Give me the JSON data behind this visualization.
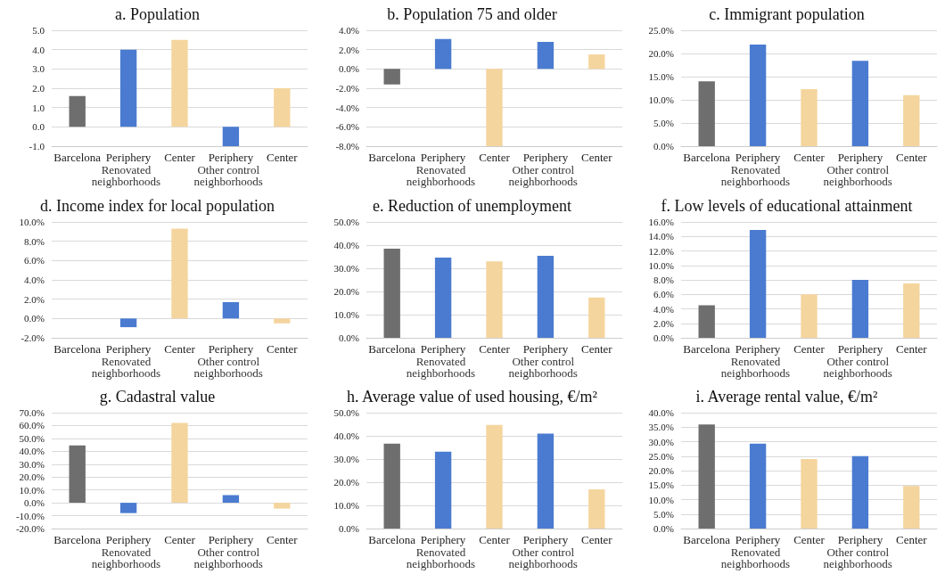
{
  "chart_data": [
    {
      "type": "bar",
      "title": "a. Population",
      "categories": [
        "Barcelona",
        "Periphery",
        "Center",
        "Periphery",
        "Center"
      ],
      "values": [
        1.6,
        4.0,
        4.5,
        -1.0,
        2.0
      ],
      "colors": [
        "#6e6e6e",
        "#4a7bd0",
        "#f5d59e",
        "#4a7bd0",
        "#f5d59e"
      ],
      "ylim": [
        -1,
        5
      ],
      "yticks": [
        {
          "value": -1,
          "label": "-1.0"
        },
        {
          "value": 0,
          "label": "0.0"
        },
        {
          "value": 1,
          "label": "1.0"
        },
        {
          "value": 2,
          "label": "2.0"
        },
        {
          "value": 3,
          "label": "3.0"
        },
        {
          "value": 4,
          "label": "4.0"
        },
        {
          "value": 5,
          "label": "5.0"
        }
      ],
      "grid": "y",
      "annotations": [
        "Renovated neighborhoods",
        "Other control neighborhoods"
      ]
    },
    {
      "type": "bar",
      "title": "b. Population 75 and older",
      "categories": [
        "Barcelona",
        "Periphery",
        "Center",
        "Periphery",
        "Center"
      ],
      "values": [
        -1.6,
        3.1,
        -8.0,
        2.8,
        1.5
      ],
      "colors": [
        "#6e6e6e",
        "#4a7bd0",
        "#f5d59e",
        "#4a7bd0",
        "#f5d59e"
      ],
      "ylim": [
        -8,
        4
      ],
      "yticks": [
        {
          "value": -8,
          "label": "-8.0%"
        },
        {
          "value": -6,
          "label": "-6.0%"
        },
        {
          "value": -4,
          "label": "-4.0%"
        },
        {
          "value": -2,
          "label": "-2.0%"
        },
        {
          "value": 0,
          "label": "0.0%"
        },
        {
          "value": 2,
          "label": "2.0%"
        },
        {
          "value": 4,
          "label": "4.0%"
        }
      ],
      "grid": "y",
      "annotations": [
        "Renovated neighborhoods",
        "Other control neighborhoods"
      ]
    },
    {
      "type": "bar",
      "title": "c. Immigrant population",
      "categories": [
        "Barcelona",
        "Periphery",
        "Center",
        "Periphery",
        "Center"
      ],
      "values": [
        14.0,
        21.9,
        12.3,
        18.4,
        11.0
      ],
      "colors": [
        "#6e6e6e",
        "#4a7bd0",
        "#f5d59e",
        "#4a7bd0",
        "#f5d59e"
      ],
      "ylim": [
        0,
        25
      ],
      "yticks": [
        {
          "value": 0,
          "label": "0.0%"
        },
        {
          "value": 5,
          "label": "5.0%"
        },
        {
          "value": 10,
          "label": "10.0%"
        },
        {
          "value": 15,
          "label": "15.0%"
        },
        {
          "value": 20,
          "label": "20.0%"
        },
        {
          "value": 25,
          "label": "25.0%"
        }
      ],
      "grid": "y",
      "annotations": [
        "Renovated neighborhoods",
        "Other control neighborhoods"
      ]
    },
    {
      "type": "bar",
      "title": "d. Income index for local population",
      "categories": [
        "Barcelona",
        "Periphery",
        "Center",
        "Periphery",
        "Center"
      ],
      "values": [
        0,
        -0.9,
        9.3,
        1.7,
        -0.5
      ],
      "colors": [
        "#6e6e6e",
        "#4a7bd0",
        "#f5d59e",
        "#4a7bd0",
        "#f5d59e"
      ],
      "ylim": [
        -2,
        10
      ],
      "yticks": [
        {
          "value": -2,
          "label": "-2.0%"
        },
        {
          "value": 0,
          "label": "0.0%"
        },
        {
          "value": 2,
          "label": "2.0%"
        },
        {
          "value": 4,
          "label": "4.0%"
        },
        {
          "value": 6,
          "label": "6.0%"
        },
        {
          "value": 8,
          "label": "8.0%"
        },
        {
          "value": 10,
          "label": "10.0%"
        }
      ],
      "grid": "y",
      "annotations": [
        "Renovated neighborhoods",
        "Other control neighborhoods"
      ]
    },
    {
      "type": "bar",
      "title": "e. Reduction of unemployment",
      "categories": [
        "Barcelona",
        "Periphery",
        "Center",
        "Periphery",
        "Center"
      ],
      "values": [
        38.5,
        34.6,
        33.0,
        35.4,
        17.4
      ],
      "colors": [
        "#6e6e6e",
        "#4a7bd0",
        "#f5d59e",
        "#4a7bd0",
        "#f5d59e"
      ],
      "ylim": [
        0,
        50
      ],
      "yticks": [
        {
          "value": 0,
          "label": "0.0%"
        },
        {
          "value": 10,
          "label": "10.0%"
        },
        {
          "value": 20,
          "label": "20.0%"
        },
        {
          "value": 30,
          "label": "30.0%"
        },
        {
          "value": 40,
          "label": "40.0%"
        },
        {
          "value": 50,
          "label": "50.0%"
        }
      ],
      "grid": "y",
      "annotations": [
        "Renovated neighborhoods",
        "Other control neighborhoods"
      ]
    },
    {
      "type": "bar",
      "title": "f. Low levels of educational attainment",
      "categories": [
        "Barcelona",
        "Periphery",
        "Center",
        "Periphery",
        "Center"
      ],
      "values": [
        4.5,
        14.9,
        6.0,
        8.0,
        7.5
      ],
      "colors": [
        "#6e6e6e",
        "#4a7bd0",
        "#f5d59e",
        "#4a7bd0",
        "#f5d59e"
      ],
      "ylim": [
        0,
        16
      ],
      "yticks": [
        {
          "value": 0,
          "label": "0.0%"
        },
        {
          "value": 2,
          "label": "2.0%"
        },
        {
          "value": 4,
          "label": "4.0%"
        },
        {
          "value": 6,
          "label": "6.0%"
        },
        {
          "value": 8,
          "label": "8.0%"
        },
        {
          "value": 10,
          "label": "10.0%"
        },
        {
          "value": 12,
          "label": "12.0%"
        },
        {
          "value": 14,
          "label": "14.0%"
        },
        {
          "value": 16,
          "label": "16.0%"
        }
      ],
      "grid": "y",
      "annotations": [
        "Renovated neighborhoods",
        "Other control neighborhoods"
      ]
    },
    {
      "type": "bar",
      "title": "g. Cadastral value",
      "categories": [
        "Barcelona",
        "Periphery",
        "Center",
        "Periphery",
        "Center"
      ],
      "values": [
        44.5,
        -8.0,
        62.0,
        6.0,
        -4.5
      ],
      "colors": [
        "#6e6e6e",
        "#4a7bd0",
        "#f5d59e",
        "#4a7bd0",
        "#f5d59e"
      ],
      "ylim": [
        -20,
        70
      ],
      "yticks": [
        {
          "value": -20,
          "label": "-20.0%"
        },
        {
          "value": -10,
          "label": "-10.0%"
        },
        {
          "value": 0,
          "label": "0.0%"
        },
        {
          "value": 10,
          "label": "10.0%"
        },
        {
          "value": 20,
          "label": "20.0%"
        },
        {
          "value": 30,
          "label": "30.0%"
        },
        {
          "value": 40,
          "label": "40.0%"
        },
        {
          "value": 50,
          "label": "50.0%"
        },
        {
          "value": 60,
          "label": "60.0%"
        },
        {
          "value": 70,
          "label": "70.0%"
        }
      ],
      "grid": "y",
      "annotations": [
        "Renovated neighborhoods",
        "Other control neighborhoods"
      ]
    },
    {
      "type": "bar",
      "title": "h. Average value of used housing, €/m²",
      "categories": [
        "Barcelona",
        "Periphery",
        "Center",
        "Periphery",
        "Center"
      ],
      "values": [
        36.6,
        33.2,
        44.7,
        41.0,
        16.9
      ],
      "colors": [
        "#6e6e6e",
        "#4a7bd0",
        "#f5d59e",
        "#4a7bd0",
        "#f5d59e"
      ],
      "ylim": [
        0,
        50
      ],
      "yticks": [
        {
          "value": 0,
          "label": "0.0%"
        },
        {
          "value": 10,
          "label": "10.0%"
        },
        {
          "value": 20,
          "label": "20.0%"
        },
        {
          "value": 30,
          "label": "30.0%"
        },
        {
          "value": 40,
          "label": "40.0%"
        },
        {
          "value": 50,
          "label": "50.0%"
        }
      ],
      "grid": "y",
      "annotations": [
        "Renovated neighborhoods",
        "Other control neighborhoods"
      ]
    },
    {
      "type": "bar",
      "title": "i. Average rental value, €/m²",
      "categories": [
        "Barcelona",
        "Periphery",
        "Center",
        "Periphery",
        "Center"
      ],
      "values": [
        35.9,
        29.3,
        24.0,
        25.0,
        14.7
      ],
      "colors": [
        "#6e6e6e",
        "#4a7bd0",
        "#f5d59e",
        "#4a7bd0",
        "#f5d59e"
      ],
      "ylim": [
        0,
        40
      ],
      "yticks": [
        {
          "value": 0,
          "label": "0.0%"
        },
        {
          "value": 5,
          "label": "5.0%"
        },
        {
          "value": 10,
          "label": "10.0%"
        },
        {
          "value": 15,
          "label": "15.0%"
        },
        {
          "value": 20,
          "label": "20.0%"
        },
        {
          "value": 25,
          "label": "25.0%"
        },
        {
          "value": 30,
          "label": "30.0%"
        },
        {
          "value": 35,
          "label": "35.0%"
        },
        {
          "value": 40,
          "label": "40.0%"
        }
      ],
      "grid": "y",
      "annotations": [
        "Renovated neighborhoods",
        "Other control neighborhoods"
      ]
    }
  ]
}
